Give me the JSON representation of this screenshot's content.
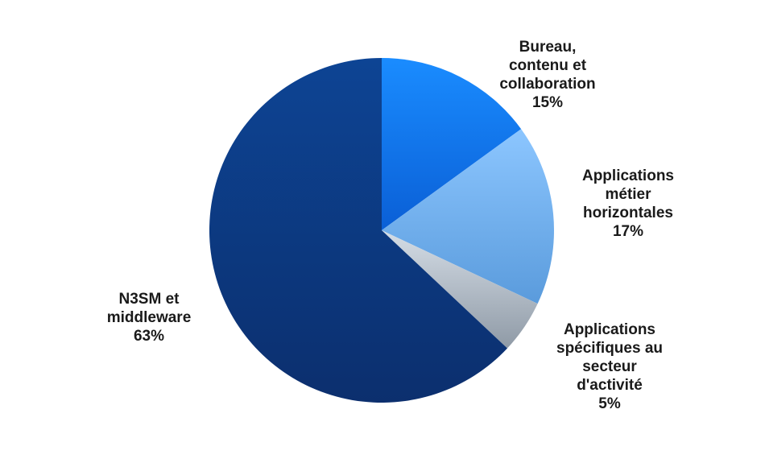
{
  "chart_data": {
    "type": "pie",
    "title": "",
    "slices": [
      {
        "label_lines": [
          "Bureau,",
          "contenu et",
          "collaboration"
        ],
        "value": 15,
        "value_label": "15%",
        "color_dark": "#0a5fd6",
        "color_light": "#1a8cff"
      },
      {
        "label_lines": [
          "Applications",
          "métier",
          "horizontales"
        ],
        "value": 17,
        "value_label": "17%",
        "color_dark": "#5a9bdc",
        "color_light": "#8cc6ff"
      },
      {
        "label_lines": [
          "Applications",
          "spécifiques au",
          "secteur",
          "d'activité"
        ],
        "value": 5,
        "value_label": "5%",
        "color_dark": "#8f9aa6",
        "color_light": "#d5dde6"
      },
      {
        "label_lines": [
          "N3SM et",
          "middleware"
        ],
        "value": 63,
        "value_label": "63%",
        "color_dark": "#0c2f6e",
        "color_light": "#0d4494"
      }
    ],
    "legend": "none",
    "start": "top",
    "direction": "clockwise"
  }
}
